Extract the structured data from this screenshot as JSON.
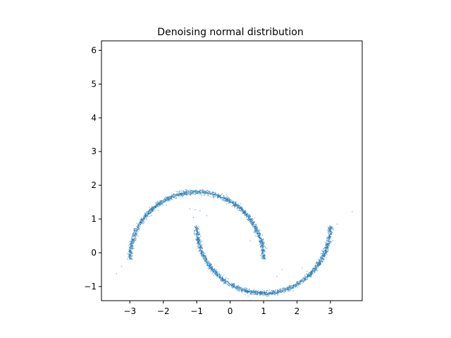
{
  "chart_data": {
    "type": "scatter",
    "title": "Denoising normal distribution",
    "xlabel": "",
    "ylabel": "",
    "xlim": [
      -3.85,
      3.95
    ],
    "ylim": [
      -1.42,
      6.28
    ],
    "xticks": [
      -3,
      -2,
      -1,
      0,
      1,
      2,
      3
    ],
    "xtick_labels": [
      "−3",
      "−2",
      "−1",
      "0",
      "1",
      "2",
      "3"
    ],
    "yticks": [
      -1,
      0,
      1,
      2,
      3,
      4,
      5,
      6
    ],
    "ytick_labels": [
      "−1",
      "0",
      "1",
      "2",
      "3",
      "4",
      "5",
      "6"
    ],
    "grid": false,
    "marker_color": "#1f77b4",
    "series": [
      {
        "shape": "upper-arc",
        "center": [
          -1,
          -0.2
        ],
        "radius": 2,
        "angle_deg_range": [
          0,
          180
        ],
        "points": 1800
      },
      {
        "shape": "lower-arc",
        "center": [
          1,
          0.8
        ],
        "radius": 2,
        "angle_deg_range": [
          180,
          360
        ],
        "points": 1800
      }
    ],
    "outliers": [
      [
        -3.4,
        -0.62
      ],
      [
        -3.25,
        -0.4
      ],
      [
        -2.35,
        1.1
      ],
      [
        -1.2,
        1.3
      ],
      [
        -1.05,
        1.28
      ],
      [
        -1.1,
        1.05
      ],
      [
        -0.9,
        1.25
      ],
      [
        -0.7,
        1.1
      ],
      [
        0.6,
        0.35
      ],
      [
        0.75,
        0.5
      ],
      [
        1.4,
        -0.7
      ],
      [
        1.55,
        -0.5
      ],
      [
        2.15,
        -0.45
      ],
      [
        2.3,
        -0.55
      ],
      [
        2.55,
        -0.4
      ],
      [
        2.65,
        -0.2
      ],
      [
        2.85,
        0.3
      ],
      [
        3.05,
        0.6
      ],
      [
        3.2,
        0.85
      ],
      [
        3.65,
        1.22
      ]
    ]
  }
}
